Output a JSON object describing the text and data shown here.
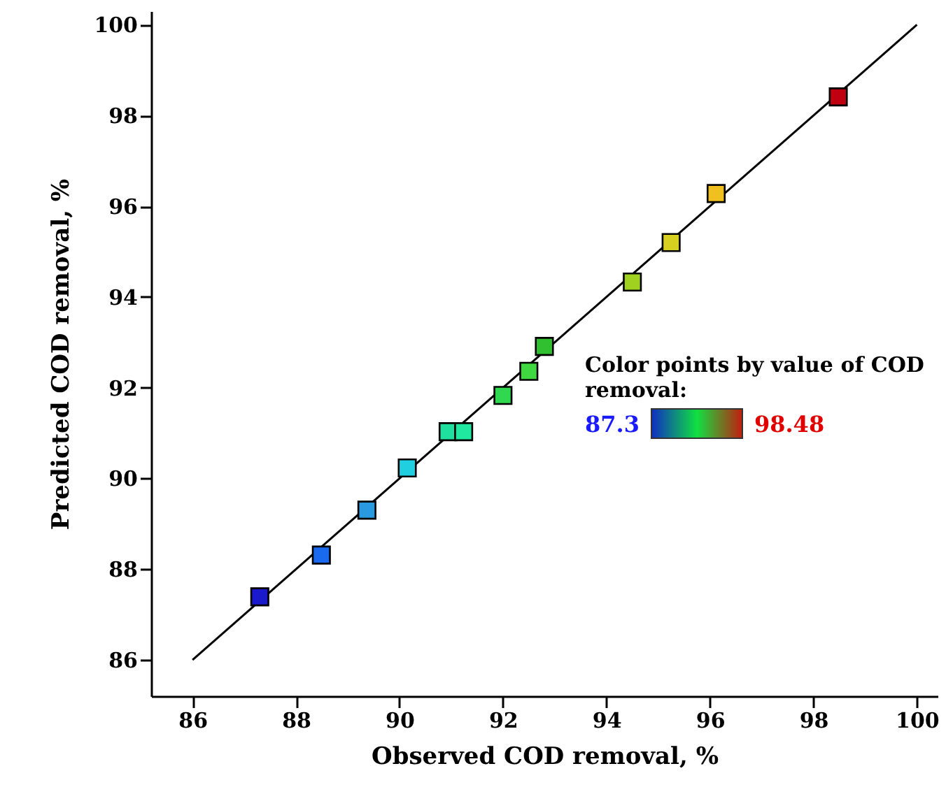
{
  "chart_data": {
    "type": "scatter",
    "xlabel": "Observed COD removal, %",
    "ylabel": "Predicted COD removal, %",
    "xlim": [
      85.2,
      100.4
    ],
    "ylim": [
      85.2,
      100.3
    ],
    "xticks": [
      86,
      88,
      90,
      92,
      94,
      96,
      98,
      100
    ],
    "yticks": [
      86,
      88,
      90,
      92,
      94,
      96,
      98,
      100
    ],
    "grid": false,
    "marker": "square",
    "annotations": [
      "Color points by value of COD removal:",
      "87.3",
      "98.48"
    ],
    "x": [
      87.3,
      88.49,
      89.37,
      90.15,
      90.94,
      91.24,
      92.0,
      92.5,
      92.8,
      94.5,
      95.25,
      96.12,
      98.48
    ],
    "values": [
      87.39,
      88.31,
      89.3,
      90.23,
      91.03,
      91.03,
      91.83,
      92.36,
      92.91,
      94.33,
      95.2,
      96.28,
      98.41
    ],
    "colors": [
      "#1a1acc",
      "#1a6af0",
      "#2a9ae0",
      "#20d0e0",
      "#20e0a0",
      "#20e8a0",
      "#30d850",
      "#40d840",
      "#30c030",
      "#a0d020",
      "#d8d020",
      "#f0c020",
      "#c00010"
    ],
    "series": [
      {
        "type": "line",
        "x": [
          86,
          100
        ],
        "values": [
          86,
          100
        ],
        "color": "#000000",
        "marker": "none"
      }
    ]
  }
}
